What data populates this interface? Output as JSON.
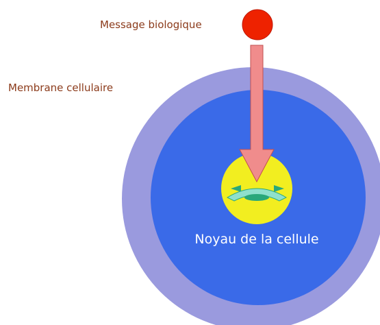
{
  "labels": {
    "message": "Message biologique",
    "membrane": "Membrane cellulaire",
    "noyau": "Noyau de la cellule"
  }
}
